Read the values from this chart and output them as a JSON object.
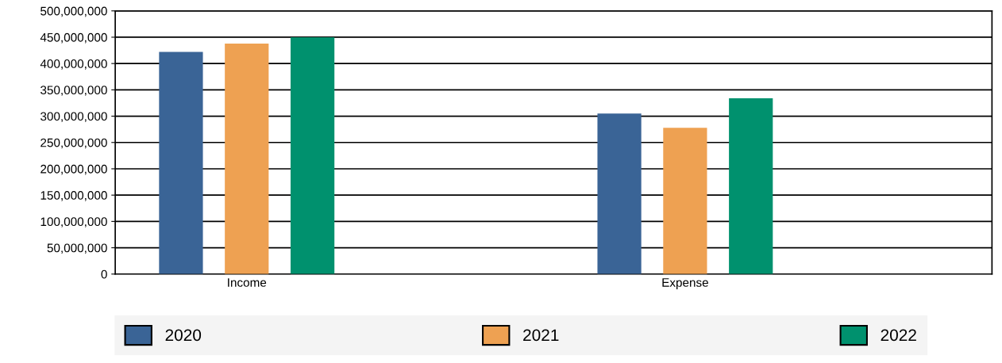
{
  "chart_data": {
    "type": "bar",
    "categories": [
      "Income",
      "Expense"
    ],
    "series": [
      {
        "name": "2020",
        "color": "#3a6496",
        "values": [
          422000000,
          305000000
        ]
      },
      {
        "name": "2021",
        "color": "#eea152",
        "values": [
          438000000,
          278000000
        ]
      },
      {
        "name": "2022",
        "color": "#00916e",
        "values": [
          450000000,
          334000000
        ]
      }
    ],
    "ylim": [
      0,
      500000000
    ],
    "yticks": [
      0,
      {
        "value": 50000000,
        "label": "50,000,000"
      },
      {
        "value": 100000000,
        "label": "100,000,000"
      },
      {
        "value": 150000000,
        "label": "150,000,000"
      },
      {
        "value": 200000000,
        "label": "200,000,000"
      },
      {
        "value": 250000000,
        "label": "250,000,000"
      },
      {
        "value": 300000000,
        "label": "300,000,000"
      },
      {
        "value": 350000000,
        "label": "350,000,000"
      },
      {
        "value": 400000000,
        "label": "400,000,000"
      },
      {
        "value": 450000000,
        "label": "450,000,000"
      },
      {
        "value": 500000000,
        "label": "500,000,000"
      }
    ],
    "grid": "y",
    "legend": "bottom"
  }
}
